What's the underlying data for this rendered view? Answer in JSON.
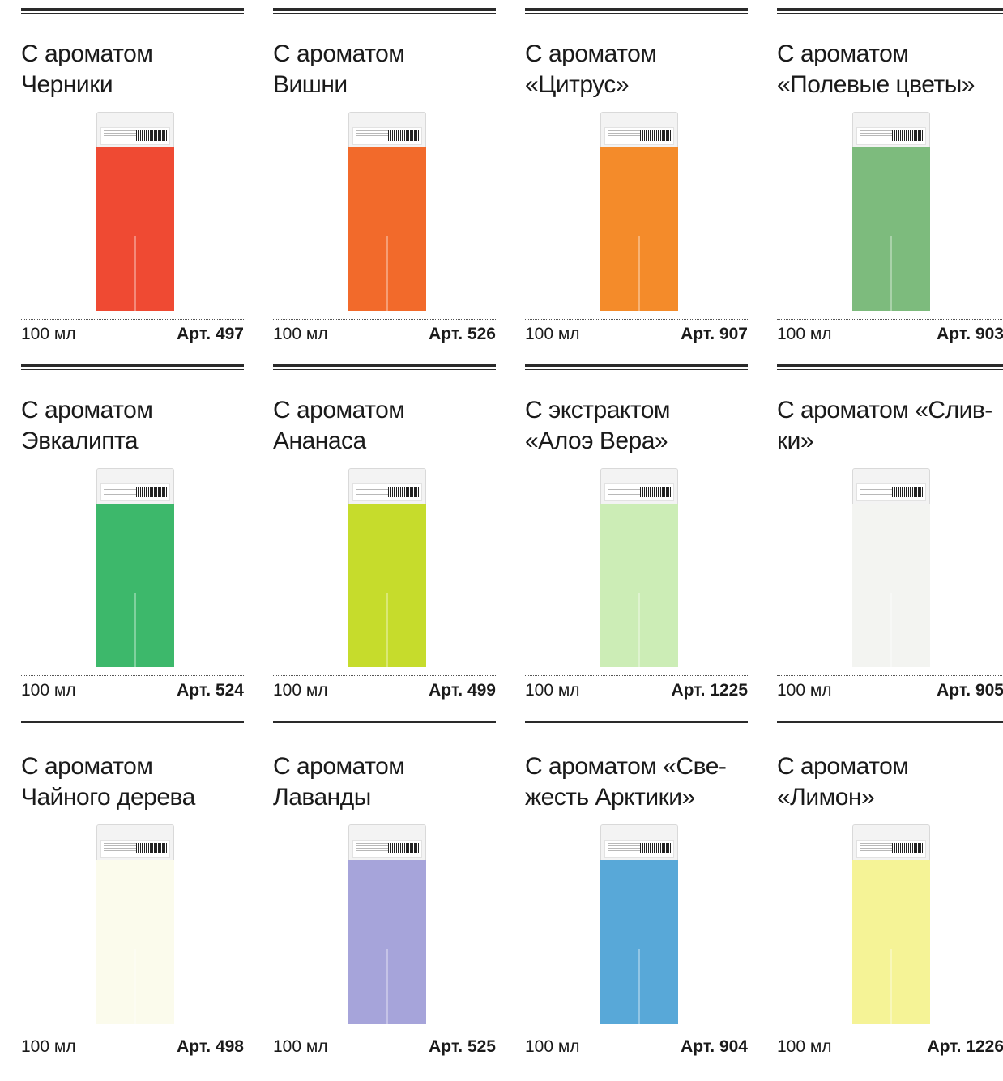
{
  "products": [
    {
      "title": [
        "С ароматом",
        "Черники"
      ],
      "volume": "100 мл",
      "sku": "Арт. 497",
      "color": "#ef4a33"
    },
    {
      "title": [
        "С ароматом",
        "Вишни"
      ],
      "volume": "100 мл",
      "sku": "Арт. 526",
      "color": "#f26a2b"
    },
    {
      "title": [
        "С ароматом",
        "«Цитрус»"
      ],
      "volume": "100 мл",
      "sku": "Арт. 907",
      "color": "#f48b2a"
    },
    {
      "title": [
        "С ароматом",
        "«Полевые цветы»"
      ],
      "volume": "100 мл",
      "sku": "Арт. 903",
      "color": "#7dbb7d"
    },
    {
      "title": [
        "С ароматом",
        "Эвкалипта"
      ],
      "volume": "100 мл",
      "sku": "Арт. 524",
      "color": "#3db86b"
    },
    {
      "title": [
        "С ароматом",
        "Ананаса"
      ],
      "volume": "100 мл",
      "sku": "Арт. 499",
      "color": "#c6dc2c"
    },
    {
      "title": [
        "С экстрактом",
        "«Алоэ Вера»"
      ],
      "volume": "100 мл",
      "sku": "Арт. 1225",
      "color": "#ccedb6"
    },
    {
      "title": [
        "С ароматом «Слив-",
        "ки»"
      ],
      "volume": "100 мл",
      "sku": "Арт. 905",
      "color": "#f3f4f1"
    },
    {
      "title": [
        "С ароматом",
        "Чайного дерева"
      ],
      "volume": "100 мл",
      "sku": "Арт. 498",
      "color": "#fbfbec"
    },
    {
      "title": [
        "С ароматом",
        "Лаванды"
      ],
      "volume": "100 мл",
      "sku": "Арт. 525",
      "color": "#a6a4da"
    },
    {
      "title": [
        "С ароматом «Све-",
        "жесть Арктики»"
      ],
      "volume": "100 мл",
      "sku": "Арт. 904",
      "color": "#58a8d8"
    },
    {
      "title": [
        "С ароматом",
        "«Лимон»"
      ],
      "volume": "100 мл",
      "sku": "Арт. 1226",
      "color": "#f5f396"
    }
  ]
}
